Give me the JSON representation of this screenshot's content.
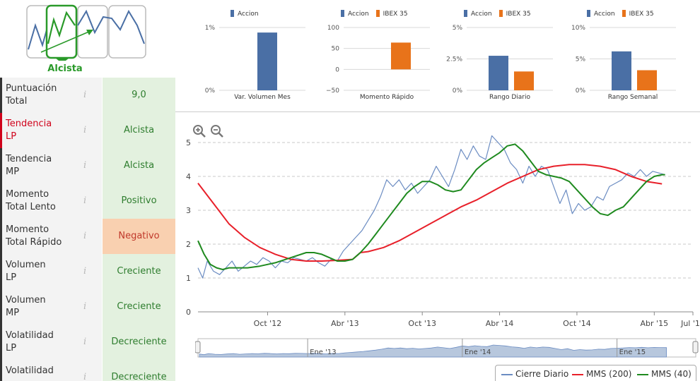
{
  "trend_badge": {
    "label": "Alcista",
    "icon": "uptrend-chart-icon",
    "color": "#2a9a2a"
  },
  "indicators": [
    {
      "name_line1": "Puntuación",
      "name_line2": "Total",
      "value": "9,0",
      "status": "positive",
      "alert": false
    },
    {
      "name_line1": "Tendencia",
      "name_line2": "LP",
      "value": "Alcista",
      "status": "positive",
      "alert": true
    },
    {
      "name_line1": "Tendencia",
      "name_line2": "MP",
      "value": "Alcista",
      "status": "positive",
      "alert": false
    },
    {
      "name_line1": "Momento",
      "name_line2": "Total Lento",
      "value": "Positivo",
      "status": "positive",
      "alert": false
    },
    {
      "name_line1": "Momento",
      "name_line2": "Total Rápido",
      "value": "Negativo",
      "status": "negative",
      "alert": false
    },
    {
      "name_line1": "Volumen",
      "name_line2": "LP",
      "value": "Creciente",
      "status": "positive",
      "alert": false
    },
    {
      "name_line1": "Volumen",
      "name_line2": "MP",
      "value": "Creciente",
      "status": "positive",
      "alert": false
    },
    {
      "name_line1": "Volatilidad",
      "name_line2": "LP",
      "value": "Decreciente",
      "status": "positive",
      "alert": false
    },
    {
      "name_line1": "Volatilidad",
      "name_line2": "",
      "value": "Decreciente",
      "status": "positive",
      "alert": false
    }
  ],
  "info_icon": "info-icon",
  "colors": {
    "accion": "#4a6fa5",
    "ibex": "#e8731a",
    "positive_bg": "#e3f1df",
    "negative_bg": "#f9d0b0",
    "alert": "#d0021b",
    "cierre": "#6b8cc2",
    "mms200": "#e8202a",
    "mms40": "#1f8a1f"
  },
  "chart_data": [
    {
      "type": "bar",
      "title": "Var. Volumen Mes",
      "legend": [
        "Accion"
      ],
      "series": [
        {
          "name": "Accion",
          "values": [
            0.92
          ]
        }
      ],
      "ylim": [
        0,
        1
      ],
      "yticks": [
        "0%",
        "1%"
      ],
      "ytick_values": [
        0,
        1
      ]
    },
    {
      "type": "bar",
      "title": "Momento Rápido",
      "legend": [
        "Accion",
        "IBEX 35"
      ],
      "series": [
        {
          "name": "Accion",
          "values": [
            null
          ]
        },
        {
          "name": "IBEX 35",
          "values": [
            64
          ]
        }
      ],
      "ylim": [
        -50,
        100
      ],
      "yticks": [
        "−50",
        "0",
        "50",
        "100"
      ],
      "ytick_values": [
        -50,
        0,
        50,
        100
      ]
    },
    {
      "type": "bar",
      "title": "Rango Diario",
      "legend": [
        "Accion",
        "IBEX 35"
      ],
      "series": [
        {
          "name": "Accion",
          "values": [
            2.75
          ]
        },
        {
          "name": "IBEX 35",
          "values": [
            1.5
          ]
        }
      ],
      "ylim": [
        0,
        5
      ],
      "yticks": [
        "0%",
        "2.5%",
        "5%"
      ],
      "ytick_values": [
        0,
        2.5,
        5
      ]
    },
    {
      "type": "bar",
      "title": "Rango Semanal",
      "legend": [
        "Accion",
        "IBEX 35"
      ],
      "series": [
        {
          "name": "Accion",
          "values": [
            6.2
          ]
        },
        {
          "name": "IBEX 35",
          "values": [
            3.2
          ]
        }
      ],
      "ylim": [
        0,
        10
      ],
      "yticks": [
        "0%",
        "5%",
        "10%"
      ],
      "ytick_values": [
        0,
        5,
        10
      ]
    },
    {
      "type": "line",
      "ylim": [
        0,
        5.5
      ],
      "yticks": [
        "0",
        "1",
        "2",
        "3",
        "4",
        "5"
      ],
      "ytick_values": [
        0,
        1,
        2,
        3,
        4,
        5
      ],
      "xticks": [
        "Oct '12",
        "Abr '13",
        "Oct '13",
        "Abr '14",
        "Oct '14",
        "Abr '15",
        "Jul '15"
      ],
      "xtick_values": [
        2012.75,
        2013.25,
        2013.75,
        2014.25,
        2014.75,
        2015.25,
        2015.5
      ],
      "xlim": [
        2012.3,
        2015.5
      ],
      "series": [
        {
          "name": "Cierre Diario",
          "x": [
            2012.3,
            2012.33,
            2012.36,
            2012.4,
            2012.44,
            2012.48,
            2012.52,
            2012.56,
            2012.6,
            2012.64,
            2012.68,
            2012.72,
            2012.76,
            2012.8,
            2012.84,
            2012.88,
            2012.92,
            2012.96,
            2013.0,
            2013.04,
            2013.08,
            2013.12,
            2013.16,
            2013.2,
            2013.24,
            2013.28,
            2013.32,
            2013.36,
            2013.4,
            2013.44,
            2013.48,
            2013.52,
            2013.56,
            2013.6,
            2013.64,
            2013.68,
            2013.72,
            2013.76,
            2013.8,
            2013.84,
            2013.88,
            2013.92,
            2013.96,
            2014.0,
            2014.04,
            2014.08,
            2014.12,
            2014.16,
            2014.2,
            2014.24,
            2014.28,
            2014.32,
            2014.36,
            2014.4,
            2014.44,
            2014.48,
            2014.52,
            2014.56,
            2014.6,
            2014.64,
            2014.68,
            2014.72,
            2014.76,
            2014.8,
            2014.84,
            2014.88,
            2014.92,
            2014.96,
            2015.0,
            2015.04,
            2015.08,
            2015.12,
            2015.16,
            2015.2,
            2015.24,
            2015.28,
            2015.32
          ],
          "values": [
            1.3,
            1.0,
            1.5,
            1.2,
            1.1,
            1.3,
            1.5,
            1.2,
            1.35,
            1.5,
            1.4,
            1.6,
            1.5,
            1.3,
            1.5,
            1.45,
            1.6,
            1.55,
            1.5,
            1.6,
            1.45,
            1.35,
            1.55,
            1.5,
            1.8,
            2.0,
            2.2,
            2.4,
            2.7,
            3.0,
            3.4,
            3.9,
            3.7,
            3.9,
            3.6,
            3.8,
            3.5,
            3.7,
            3.9,
            4.3,
            4.0,
            3.7,
            4.2,
            4.8,
            4.5,
            4.9,
            4.6,
            4.5,
            5.2,
            5.0,
            4.8,
            4.4,
            4.2,
            3.8,
            4.3,
            4.0,
            4.3,
            4.2,
            3.7,
            3.2,
            3.6,
            2.9,
            3.2,
            3.0,
            3.1,
            3.4,
            3.3,
            3.7,
            3.8,
            3.9,
            4.1,
            4.0,
            4.2,
            4.0,
            4.15,
            4.1,
            4.05
          ]
        },
        {
          "name": "MMS (200)",
          "x": [
            2012.3,
            2012.4,
            2012.5,
            2012.6,
            2012.7,
            2012.8,
            2012.9,
            2013.0,
            2013.1,
            2013.2,
            2013.3,
            2013.35,
            2013.4,
            2013.5,
            2013.6,
            2013.7,
            2013.8,
            2013.9,
            2014.0,
            2014.1,
            2014.2,
            2014.3,
            2014.4,
            2014.5,
            2014.6,
            2014.7,
            2014.8,
            2014.9,
            2015.0,
            2015.1,
            2015.2,
            2015.3
          ],
          "values": [
            3.8,
            3.2,
            2.6,
            2.2,
            1.9,
            1.7,
            1.55,
            1.5,
            1.5,
            1.52,
            1.55,
            1.75,
            1.78,
            1.9,
            2.1,
            2.35,
            2.6,
            2.85,
            3.1,
            3.3,
            3.55,
            3.8,
            4.0,
            4.2,
            4.3,
            4.35,
            4.35,
            4.3,
            4.2,
            4.0,
            3.85,
            3.78
          ]
        },
        {
          "name": "MMS (40)",
          "x": [
            2012.3,
            2012.34,
            2012.38,
            2012.42,
            2012.46,
            2012.5,
            2012.56,
            2012.62,
            2012.7,
            2012.8,
            2012.9,
            2013.0,
            2013.05,
            2013.1,
            2013.15,
            2013.2,
            2013.25,
            2013.3,
            2013.35,
            2013.4,
            2013.45,
            2013.5,
            2013.55,
            2013.6,
            2013.65,
            2013.7,
            2013.75,
            2013.8,
            2013.85,
            2013.9,
            2013.95,
            2014.0,
            2014.05,
            2014.1,
            2014.15,
            2014.2,
            2014.25,
            2014.3,
            2014.35,
            2014.4,
            2014.45,
            2014.5,
            2014.55,
            2014.6,
            2014.65,
            2014.7,
            2014.75,
            2014.8,
            2014.85,
            2014.9,
            2014.95,
            2015.0,
            2015.05,
            2015.1,
            2015.15,
            2015.2,
            2015.25,
            2015.3,
            2015.32
          ],
          "values": [
            2.1,
            1.7,
            1.4,
            1.3,
            1.25,
            1.3,
            1.3,
            1.3,
            1.35,
            1.45,
            1.6,
            1.75,
            1.75,
            1.7,
            1.6,
            1.5,
            1.5,
            1.55,
            1.75,
            2.0,
            2.3,
            2.6,
            2.9,
            3.2,
            3.5,
            3.7,
            3.85,
            3.85,
            3.75,
            3.6,
            3.55,
            3.6,
            3.9,
            4.2,
            4.4,
            4.55,
            4.7,
            4.9,
            4.95,
            4.75,
            4.45,
            4.15,
            4.05,
            4.0,
            3.95,
            3.85,
            3.6,
            3.35,
            3.1,
            2.9,
            2.85,
            3.0,
            3.1,
            3.35,
            3.6,
            3.85,
            4.0,
            4.05,
            4.05
          ]
        }
      ]
    }
  ],
  "navigator": {
    "labels": [
      "Ene '13",
      "Ene '14",
      "Ene '15"
    ],
    "label_x": [
      2013.0,
      2014.0,
      2015.0
    ]
  },
  "legend": {
    "items": [
      "Cierre Diario",
      "MMS (200)",
      "MMS (40)"
    ]
  },
  "zoom": {
    "in_icon": "zoom-in-icon",
    "out_icon": "zoom-out-icon"
  }
}
